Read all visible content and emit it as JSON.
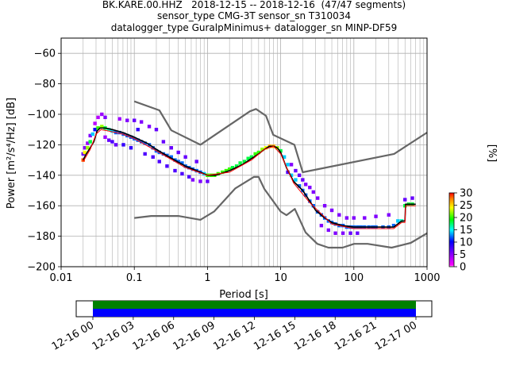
{
  "title": {
    "line1": "BK.KARE.00.HHZ   2018-12-15 -- 2018-12-16  (47/47 segments)",
    "line2": "sensor_type CMG-3T sensor_sn T310034",
    "line3": "datalogger_type GuralpMinimus+ datalogger_sn MINP-DF59"
  },
  "chart_data": {
    "type": "line",
    "xlabel": "Period [s]",
    "ylabel": "Power [m²/s⁴/Hz] [dB]",
    "xscale": "log",
    "xlim": [
      0.01,
      1000
    ],
    "ylim": [
      -200,
      -50
    ],
    "xticks": [
      {
        "value": 0.01,
        "label": "0.01"
      },
      {
        "value": 0.1,
        "label": "0.1"
      },
      {
        "value": 1,
        "label": "1"
      },
      {
        "value": 10,
        "label": "10"
      },
      {
        "value": 100,
        "label": "100"
      },
      {
        "value": 1000,
        "label": "1000"
      }
    ],
    "yticks": [
      -60,
      -80,
      -100,
      -120,
      -140,
      -160,
      -180,
      -200
    ],
    "grid": true,
    "colorbar": {
      "label": "[%]",
      "ticks": [
        0,
        5,
        10,
        15,
        20,
        25,
        30
      ],
      "range": [
        0,
        30
      ]
    },
    "series": [
      {
        "role": "mean",
        "color": "#000000",
        "points": [
          [
            0.02,
            -130
          ],
          [
            0.022,
            -126
          ],
          [
            0.025,
            -122
          ],
          [
            0.028,
            -118
          ],
          [
            0.031,
            -111
          ],
          [
            0.034,
            -109
          ],
          [
            0.04,
            -109
          ],
          [
            0.05,
            -110
          ],
          [
            0.07,
            -112
          ],
          [
            0.1,
            -115
          ],
          [
            0.15,
            -119
          ],
          [
            0.2,
            -123
          ],
          [
            0.3,
            -128
          ],
          [
            0.5,
            -134
          ],
          [
            0.8,
            -138
          ],
          [
            1,
            -140
          ],
          [
            1.3,
            -140
          ],
          [
            2,
            -137
          ],
          [
            3,
            -133
          ],
          [
            4,
            -129
          ],
          [
            5,
            -126
          ],
          [
            6,
            -123
          ],
          [
            7,
            -121
          ],
          [
            8,
            -121
          ],
          [
            9,
            -122
          ],
          [
            10,
            -125
          ],
          [
            12,
            -135
          ],
          [
            15,
            -144
          ],
          [
            20,
            -150
          ],
          [
            25,
            -157
          ],
          [
            30,
            -163
          ],
          [
            40,
            -168
          ],
          [
            50,
            -171
          ],
          [
            70,
            -173
          ],
          [
            100,
            -174
          ],
          [
            150,
            -174
          ],
          [
            200,
            -174
          ],
          [
            350,
            -174
          ],
          [
            450,
            -170
          ],
          [
            500,
            -170
          ],
          [
            510,
            -159
          ],
          [
            700,
            -159
          ]
        ]
      },
      {
        "role": "mode",
        "color": "#ff0000",
        "points": [
          [
            0.02,
            -131
          ],
          [
            0.025,
            -123
          ],
          [
            0.03,
            -113
          ],
          [
            0.035,
            -110
          ],
          [
            0.045,
            -111
          ],
          [
            0.07,
            -113
          ],
          [
            0.1,
            -116
          ],
          [
            0.2,
            -124
          ],
          [
            0.5,
            -135
          ],
          [
            1,
            -140
          ],
          [
            2,
            -138
          ],
          [
            4,
            -130
          ],
          [
            6,
            -123
          ],
          [
            8,
            -121
          ],
          [
            10,
            -126
          ],
          [
            15,
            -145
          ],
          [
            25,
            -158
          ],
          [
            50,
            -172
          ],
          [
            100,
            -175
          ],
          [
            350,
            -175
          ],
          [
            450,
            -171
          ],
          [
            500,
            -171
          ],
          [
            510,
            -160
          ],
          [
            700,
            -160
          ]
        ]
      },
      {
        "role": "NHNM",
        "color": "#666666",
        "points": [
          [
            0.1,
            -91.5
          ],
          [
            0.22,
            -97.4
          ],
          [
            0.32,
            -110.5
          ],
          [
            0.8,
            -120
          ],
          [
            3.8,
            -98
          ],
          [
            4.6,
            -96.5
          ],
          [
            6.3,
            -101
          ],
          [
            7.9,
            -113.5
          ],
          [
            15.4,
            -120
          ],
          [
            20,
            -138
          ],
          [
            354.8,
            -126
          ],
          [
            1000,
            -112
          ]
        ]
      },
      {
        "role": "NLNM",
        "color": "#666666",
        "points": [
          [
            0.1,
            -168
          ],
          [
            0.17,
            -166.7
          ],
          [
            0.4,
            -166.7
          ],
          [
            0.8,
            -169.2
          ],
          [
            1.24,
            -163.7
          ],
          [
            2.4,
            -148.6
          ],
          [
            4.3,
            -141.1
          ],
          [
            5,
            -141.1
          ],
          [
            6,
            -149
          ],
          [
            10,
            -163.8
          ],
          [
            12,
            -166.2
          ],
          [
            15.6,
            -162.1
          ],
          [
            21.9,
            -177.5
          ],
          [
            31.6,
            -185
          ],
          [
            45,
            -187.5
          ],
          [
            70,
            -187.5
          ],
          [
            101,
            -185
          ],
          [
            154,
            -185
          ],
          [
            328,
            -187.5
          ],
          [
            600,
            -184.4
          ],
          [
            1000,
            -178
          ]
        ]
      }
    ],
    "histogram": {
      "colormap": "pqlx",
      "note": "probability density of PSD values, percent occurrence",
      "cells": [
        [
          0.02,
          -130,
          28
        ],
        [
          0.02,
          -126,
          6
        ],
        [
          0.021,
          -125,
          24
        ],
        [
          0.021,
          -122,
          5
        ],
        [
          0.023,
          -122,
          22
        ],
        [
          0.023,
          -119,
          4
        ],
        [
          0.025,
          -118,
          18
        ],
        [
          0.025,
          -114,
          5
        ],
        [
          0.027,
          -113,
          14
        ],
        [
          0.029,
          -110,
          10
        ],
        [
          0.029,
          -106,
          3
        ],
        [
          0.032,
          -109,
          20
        ],
        [
          0.032,
          -102,
          3
        ],
        [
          0.036,
          -108,
          22
        ],
        [
          0.036,
          -100,
          4
        ],
        [
          0.04,
          -109,
          18
        ],
        [
          0.04,
          -102,
          5
        ],
        [
          0.04,
          -115,
          4
        ],
        [
          0.045,
          -110,
          16
        ],
        [
          0.045,
          -117,
          6
        ],
        [
          0.05,
          -111,
          14
        ],
        [
          0.05,
          -118,
          7
        ],
        [
          0.056,
          -112,
          12
        ],
        [
          0.056,
          -120,
          6
        ],
        [
          0.063,
          -112,
          12
        ],
        [
          0.063,
          -103,
          4
        ],
        [
          0.071,
          -113,
          12
        ],
        [
          0.071,
          -120,
          8
        ],
        [
          0.08,
          -114,
          12
        ],
        [
          0.08,
          -104,
          5
        ],
        [
          0.09,
          -115,
          12
        ],
        [
          0.09,
          -122,
          8
        ],
        [
          0.1,
          -116,
          12
        ],
        [
          0.1,
          -104,
          6
        ],
        [
          0.112,
          -117,
          12
        ],
        [
          0.112,
          -110,
          8
        ],
        [
          0.125,
          -118,
          12
        ],
        [
          0.125,
          -105,
          5
        ],
        [
          0.14,
          -119,
          12
        ],
        [
          0.14,
          -126,
          7
        ],
        [
          0.16,
          -120,
          12
        ],
        [
          0.16,
          -108,
          5
        ],
        [
          0.18,
          -122,
          12
        ],
        [
          0.18,
          -128,
          7
        ],
        [
          0.2,
          -124,
          12
        ],
        [
          0.2,
          -110,
          6
        ],
        [
          0.22,
          -125,
          12
        ],
        [
          0.22,
          -131,
          7
        ],
        [
          0.25,
          -126,
          12
        ],
        [
          0.25,
          -118,
          6
        ],
        [
          0.28,
          -127,
          12
        ],
        [
          0.28,
          -134,
          7
        ],
        [
          0.32,
          -128,
          12
        ],
        [
          0.32,
          -122,
          6
        ],
        [
          0.36,
          -130,
          12
        ],
        [
          0.36,
          -137,
          7
        ],
        [
          0.4,
          -131,
          12
        ],
        [
          0.4,
          -125,
          6
        ],
        [
          0.45,
          -132,
          12
        ],
        [
          0.45,
          -139,
          7
        ],
        [
          0.5,
          -134,
          12
        ],
        [
          0.5,
          -128,
          6
        ],
        [
          0.56,
          -135,
          12
        ],
        [
          0.56,
          -141,
          7
        ],
        [
          0.63,
          -136,
          12
        ],
        [
          0.63,
          -143,
          5
        ],
        [
          0.71,
          -137,
          12
        ],
        [
          0.71,
          -131,
          6
        ],
        [
          0.8,
          -138,
          12
        ],
        [
          0.8,
          -144,
          5
        ],
        [
          0.9,
          -139,
          14
        ],
        [
          1,
          -140,
          20
        ],
        [
          1,
          -144,
          6
        ],
        [
          1.12,
          -140,
          20
        ],
        [
          1.25,
          -140,
          20
        ],
        [
          1.4,
          -139,
          20
        ],
        [
          1.6,
          -138,
          20
        ],
        [
          1.8,
          -137,
          20
        ],
        [
          2,
          -136,
          20
        ],
        [
          2.2,
          -135,
          18
        ],
        [
          2.5,
          -134,
          18
        ],
        [
          2.8,
          -132,
          18
        ],
        [
          3.2,
          -131,
          18
        ],
        [
          3.6,
          -129,
          18
        ],
        [
          4,
          -128,
          18
        ],
        [
          4.5,
          -126,
          20
        ],
        [
          5,
          -125,
          20
        ],
        [
          5.6,
          -123,
          22
        ],
        [
          6.3,
          -122,
          24
        ],
        [
          7.1,
          -121,
          26
        ],
        [
          8,
          -121,
          26
        ],
        [
          9,
          -122,
          22
        ],
        [
          10,
          -124,
          18
        ],
        [
          11.2,
          -128,
          14
        ],
        [
          12.5,
          -133,
          14
        ],
        [
          12.5,
          -138,
          7
        ],
        [
          14,
          -140,
          14
        ],
        [
          14,
          -133,
          5
        ],
        [
          16,
          -143,
          14
        ],
        [
          16,
          -137,
          6
        ],
        [
          18,
          -147,
          12
        ],
        [
          18,
          -140,
          6
        ],
        [
          20,
          -150,
          12
        ],
        [
          20,
          -143,
          6
        ],
        [
          22,
          -153,
          12
        ],
        [
          22,
          -146,
          5
        ],
        [
          25,
          -157,
          12
        ],
        [
          25,
          -148,
          5
        ],
        [
          28,
          -160,
          12
        ],
        [
          28,
          -151,
          5
        ],
        [
          32,
          -164,
          12
        ],
        [
          32,
          -155,
          5
        ],
        [
          36,
          -166,
          12
        ],
        [
          36,
          -173,
          5
        ],
        [
          40,
          -168,
          12
        ],
        [
          40,
          -160,
          5
        ],
        [
          45,
          -170,
          12
        ],
        [
          45,
          -176,
          5
        ],
        [
          50,
          -171,
          12
        ],
        [
          50,
          -163,
          5
        ],
        [
          56,
          -172,
          12
        ],
        [
          56,
          -178,
          5
        ],
        [
          63,
          -173,
          12
        ],
        [
          63,
          -166,
          5
        ],
        [
          71,
          -173,
          12
        ],
        [
          71,
          -178,
          5
        ],
        [
          80,
          -174,
          12
        ],
        [
          80,
          -168,
          5
        ],
        [
          90,
          -174,
          12
        ],
        [
          90,
          -178,
          6
        ],
        [
          100,
          -174,
          12
        ],
        [
          100,
          -168,
          5
        ],
        [
          112,
          -174,
          12
        ],
        [
          112,
          -178,
          6
        ],
        [
          125,
          -174,
          12
        ],
        [
          140,
          -174,
          12
        ],
        [
          140,
          -168,
          5
        ],
        [
          160,
          -174,
          12
        ],
        [
          180,
          -174,
          12
        ],
        [
          200,
          -174,
          12
        ],
        [
          200,
          -167,
          5
        ],
        [
          250,
          -174,
          12
        ],
        [
          300,
          -174,
          12
        ],
        [
          300,
          -166,
          5
        ],
        [
          350,
          -173,
          12
        ],
        [
          400,
          -170,
          14
        ],
        [
          450,
          -170,
          16
        ],
        [
          500,
          -160,
          18
        ],
        [
          500,
          -156,
          6
        ],
        [
          560,
          -159,
          18
        ],
        [
          630,
          -159,
          18
        ],
        [
          630,
          -155,
          6
        ]
      ]
    },
    "timeline": {
      "xlabels": [
        "12-16 00",
        "12-16 03",
        "12-16 06",
        "12-16 09",
        "12-16 12",
        "12-16 15",
        "12-16 18",
        "12-16 21",
        "12-17 00"
      ],
      "colors": {
        "coverage": "#008000",
        "data": "#0000ff"
      }
    }
  }
}
